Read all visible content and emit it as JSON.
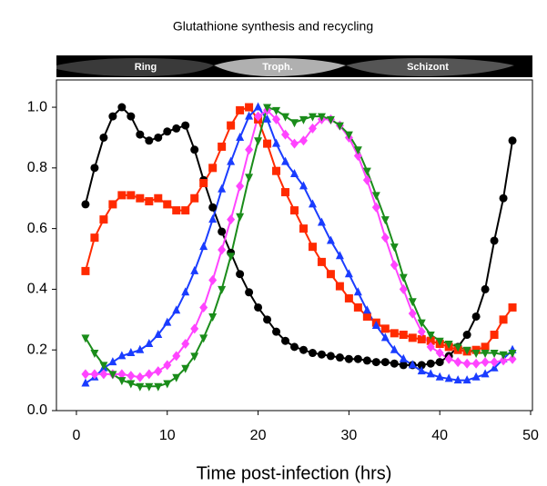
{
  "chart_data": {
    "type": "line",
    "title": "Glutathione synthesis and recycling",
    "x_label": "Time post-infection (hrs)",
    "stages": [
      "Ring",
      "Troph.",
      "Schizont"
    ],
    "x": [
      1,
      2,
      3,
      4,
      5,
      6,
      7,
      8,
      9,
      10,
      11,
      12,
      13,
      14,
      15,
      16,
      17,
      18,
      19,
      20,
      21,
      22,
      23,
      24,
      25,
      26,
      27,
      28,
      29,
      30,
      31,
      32,
      33,
      34,
      35,
      36,
      37,
      38,
      39,
      40,
      41,
      42,
      43,
      44,
      45,
      46,
      47,
      48
    ],
    "series": [
      {
        "color": "#000000",
        "marker": "circle",
        "values": [
          0.68,
          0.8,
          0.9,
          0.97,
          1.0,
          0.97,
          0.91,
          0.89,
          0.9,
          0.92,
          0.93,
          0.94,
          0.86,
          0.76,
          0.67,
          0.59,
          0.52,
          0.45,
          0.39,
          0.34,
          0.3,
          0.26,
          0.23,
          0.21,
          0.2,
          0.19,
          0.185,
          0.18,
          0.175,
          0.17,
          0.17,
          0.165,
          0.16,
          0.16,
          0.155,
          0.15,
          0.15,
          0.15,
          0.155,
          0.16,
          0.18,
          0.21,
          0.25,
          0.31,
          0.4,
          0.56,
          0.7,
          0.89
        ]
      },
      {
        "color": "#ff2a00",
        "marker": "square",
        "values": [
          0.46,
          0.57,
          0.63,
          0.68,
          0.71,
          0.71,
          0.7,
          0.69,
          0.7,
          0.68,
          0.66,
          0.66,
          0.7,
          0.75,
          0.8,
          0.87,
          0.94,
          0.99,
          1.0,
          0.96,
          0.88,
          0.79,
          0.72,
          0.66,
          0.6,
          0.54,
          0.49,
          0.45,
          0.41,
          0.37,
          0.34,
          0.31,
          0.29,
          0.27,
          0.255,
          0.25,
          0.24,
          0.235,
          0.23,
          0.22,
          0.21,
          0.2,
          0.195,
          0.2,
          0.21,
          0.25,
          0.3,
          0.34
        ]
      },
      {
        "color": "#1a3cff",
        "marker": "triangle-up",
        "values": [
          0.09,
          0.11,
          0.14,
          0.16,
          0.18,
          0.19,
          0.2,
          0.22,
          0.25,
          0.29,
          0.33,
          0.39,
          0.46,
          0.54,
          0.63,
          0.73,
          0.82,
          0.9,
          0.97,
          1.0,
          0.96,
          0.88,
          0.82,
          0.78,
          0.74,
          0.68,
          0.62,
          0.56,
          0.51,
          0.45,
          0.39,
          0.33,
          0.28,
          0.24,
          0.2,
          0.17,
          0.15,
          0.13,
          0.12,
          0.11,
          0.105,
          0.1,
          0.1,
          0.11,
          0.12,
          0.14,
          0.17,
          0.2
        ]
      },
      {
        "color": "#ff44ff",
        "marker": "diamond",
        "values": [
          0.12,
          0.12,
          0.12,
          0.12,
          0.12,
          0.115,
          0.11,
          0.12,
          0.13,
          0.15,
          0.18,
          0.22,
          0.27,
          0.34,
          0.43,
          0.53,
          0.63,
          0.74,
          0.86,
          0.97,
          0.99,
          0.96,
          0.91,
          0.88,
          0.89,
          0.93,
          0.96,
          0.96,
          0.94,
          0.9,
          0.84,
          0.76,
          0.67,
          0.57,
          0.48,
          0.4,
          0.32,
          0.26,
          0.21,
          0.19,
          0.17,
          0.16,
          0.155,
          0.155,
          0.16,
          0.16,
          0.165,
          0.17
        ]
      },
      {
        "color": "#1a8c1a",
        "marker": "triangle-down",
        "values": [
          0.24,
          0.19,
          0.15,
          0.12,
          0.1,
          0.09,
          0.08,
          0.08,
          0.08,
          0.09,
          0.11,
          0.14,
          0.18,
          0.24,
          0.31,
          0.4,
          0.51,
          0.64,
          0.77,
          0.89,
          1.0,
          0.99,
          0.97,
          0.95,
          0.96,
          0.97,
          0.97,
          0.96,
          0.94,
          0.91,
          0.86,
          0.79,
          0.71,
          0.63,
          0.54,
          0.44,
          0.36,
          0.29,
          0.25,
          0.23,
          0.22,
          0.21,
          0.2,
          0.19,
          0.19,
          0.19,
          0.185,
          0.19
        ]
      }
    ],
    "xlim": [
      -2.2,
      50.2
    ],
    "xticks": [
      0,
      10,
      20,
      30,
      40,
      50
    ],
    "ylim": [
      0,
      1.09
    ],
    "yticks": [
      {
        "value": 0,
        "label": "0.0"
      },
      0.2,
      0.4,
      0.6,
      0.8,
      {
        "value": 1,
        "label": "1.0"
      }
    ]
  }
}
